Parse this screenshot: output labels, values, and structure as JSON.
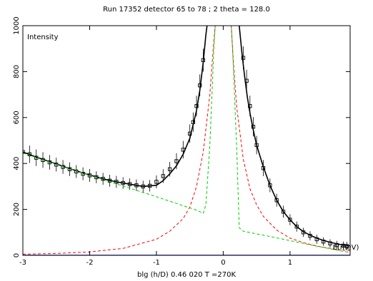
{
  "chart_data": {
    "type": "scatter",
    "title": "Run 17352 detector 65 to 78 ; 2 theta = 128.0",
    "xlabel": "blg (h/D) 0.46 020 T =270K",
    "ylabel": "",
    "inner_label": "Intensity",
    "x_unit_label": "E(meV)",
    "xlim": [
      -3,
      1.9
    ],
    "ylim": [
      0,
      1000
    ],
    "x_ticks": [
      -3,
      -2,
      -1,
      0,
      1
    ],
    "y_ticks": [
      0,
      200,
      400,
      600,
      800,
      1000
    ],
    "grid": false,
    "legend": "none",
    "colors": {
      "data": "#000000",
      "fit_total": "#000000",
      "lorentzian": "#ff0000",
      "elastic_background": "#00cc00",
      "baseline": "#0000ff"
    },
    "series": [
      {
        "kind": "points",
        "color": "#000000",
        "x": [
          -3.0,
          -2.9,
          -2.8,
          -2.7,
          -2.6,
          -2.5,
          -2.4,
          -2.3,
          -2.2,
          -2.1,
          -2.0,
          -1.9,
          -1.8,
          -1.7,
          -1.6,
          -1.5,
          -1.4,
          -1.3,
          -1.2,
          -1.1,
          -1.0,
          -0.9,
          -0.8,
          -0.7,
          -0.6,
          -0.5,
          -0.45,
          -0.4,
          -0.35,
          -0.3,
          0.3,
          0.35,
          0.4,
          0.45,
          0.5,
          0.6,
          0.7,
          0.8,
          0.9,
          1.0,
          1.1,
          1.2,
          1.3,
          1.4,
          1.5,
          1.6,
          1.7,
          1.8,
          1.85
        ],
        "y": [
          450,
          440,
          425,
          415,
          405,
          395,
          385,
          375,
          365,
          355,
          348,
          340,
          333,
          325,
          320,
          315,
          310,
          305,
          300,
          303,
          320,
          345,
          375,
          410,
          460,
          530,
          580,
          650,
          740,
          850,
          860,
          760,
          650,
          560,
          480,
          380,
          305,
          240,
          190,
          155,
          125,
          100,
          85,
          70,
          60,
          52,
          45,
          42,
          40
        ],
        "error": [
          40,
          38,
          36,
          34,
          32,
          30,
          30,
          30,
          28,
          28,
          28,
          26,
          26,
          26,
          26,
          25,
          25,
          25,
          25,
          25,
          28,
          30,
          32,
          35,
          38,
          40,
          42,
          45,
          48,
          50,
          50,
          48,
          45,
          42,
          40,
          35,
          30,
          28,
          26,
          24,
          22,
          20,
          20,
          20,
          18,
          18,
          18,
          18,
          18
        ]
      },
      {
        "kind": "line",
        "style": "solid",
        "color": "#000000",
        "x": [
          -3.0,
          -2.8,
          -2.6,
          -2.4,
          -2.2,
          -2.0,
          -1.8,
          -1.6,
          -1.4,
          -1.2,
          -1.0,
          -0.9,
          -0.8,
          -0.7,
          -0.6,
          -0.5,
          -0.4,
          -0.35,
          -0.3,
          -0.26,
          -0.22,
          -0.19,
          0.22,
          0.24,
          0.28,
          0.32,
          0.36,
          0.4,
          0.45,
          0.5,
          0.6,
          0.7,
          0.8,
          0.9,
          1.0,
          1.1,
          1.2,
          1.3,
          1.4,
          1.5,
          1.6,
          1.7,
          1.8,
          1.9
        ],
        "y": [
          450,
          428,
          408,
          388,
          368,
          350,
          333,
          320,
          310,
          300,
          305,
          325,
          355,
          390,
          440,
          510,
          630,
          720,
          840,
          960,
          1050,
          1100,
          1100,
          1000,
          880,
          780,
          690,
          620,
          545,
          480,
          385,
          305,
          240,
          190,
          155,
          125,
          103,
          88,
          75,
          65,
          57,
          50,
          45,
          42
        ]
      },
      {
        "kind": "line",
        "style": "dashed",
        "color": "#ff0000",
        "x": [
          -3.0,
          -2.5,
          -2.0,
          -1.5,
          -1.0,
          -0.8,
          -0.6,
          -0.5,
          -0.4,
          -0.3,
          -0.2,
          -0.15,
          -0.12,
          -0.1,
          0.1,
          0.12,
          0.15,
          0.2,
          0.3,
          0.4,
          0.5,
          0.6,
          0.8,
          1.0,
          1.2,
          1.4,
          1.6,
          1.8,
          1.9
        ],
        "y": [
          5,
          8,
          15,
          30,
          70,
          105,
          160,
          210,
          300,
          450,
          700,
          900,
          1000,
          1100,
          1100,
          1000,
          850,
          650,
          420,
          290,
          220,
          170,
          110,
          75,
          55,
          40,
          30,
          22,
          20
        ]
      },
      {
        "kind": "line",
        "style": "dashed",
        "color": "#00cc00",
        "x": [
          -3.0,
          -2.5,
          -2.0,
          -1.5,
          -1.0,
          -0.6,
          -0.4,
          -0.3,
          -0.26,
          -0.2,
          -0.14,
          -0.1,
          0.1,
          0.14,
          0.2,
          0.24,
          0.3,
          0.6,
          1.0,
          1.4,
          1.8,
          1.9
        ],
        "y": [
          445,
          397,
          350,
          302,
          255,
          216,
          197,
          183,
          220,
          480,
          900,
          1100,
          1100,
          900,
          480,
          120,
          105,
          88,
          64,
          40,
          17,
          12
        ]
      },
      {
        "kind": "line",
        "style": "solid",
        "color": "#0000ff",
        "x": [
          -3.0,
          1.9
        ],
        "y": [
          0,
          0
        ]
      }
    ]
  }
}
